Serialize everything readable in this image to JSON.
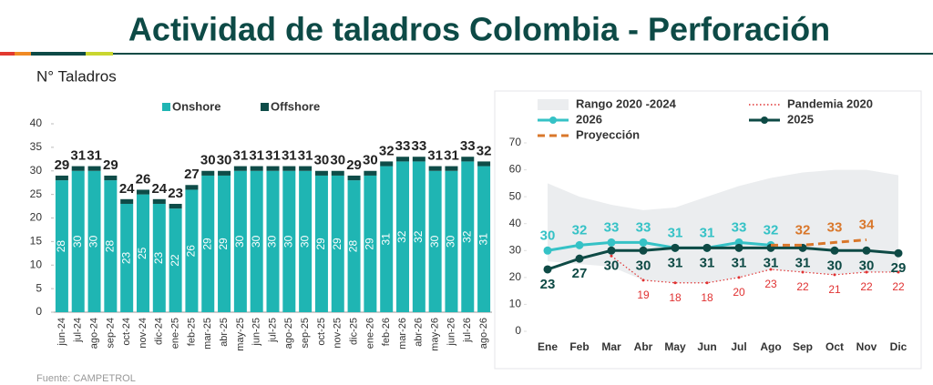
{
  "title": "Actividad de taladros Colombia - Perforación",
  "source": "Fuente: CAMPETROL",
  "chart_data": [
    {
      "type": "stacked_bar",
      "y_label": "N° Taladros",
      "categories": [
        "jun-24",
        "jul-24",
        "ago-24",
        "sep-24",
        "oct-24",
        "nov-24",
        "dic-24",
        "ene-25",
        "feb-25",
        "mar-25",
        "abr-25",
        "may-25",
        "jun-25",
        "jul-25",
        "ago-25",
        "sep-25",
        "oct-25",
        "nov-25",
        "dic-25",
        "ene-26",
        "feb-26",
        "mar-26",
        "abr-26",
        "may-26",
        "jun-26",
        "jul-26",
        "ago-26"
      ],
      "series": [
        {
          "name": "Onshore",
          "color": "#1fb5b3",
          "values": [
            28,
            30,
            30,
            28,
            23,
            25,
            23,
            22,
            26,
            29,
            29,
            30,
            30,
            30,
            30,
            30,
            29,
            29,
            28,
            29,
            31,
            32,
            32,
            30,
            30,
            32,
            31
          ]
        },
        {
          "name": "Offshore",
          "color": "#0e4c48",
          "values": [
            1,
            1,
            1,
            1,
            1,
            1,
            1,
            1,
            1,
            1,
            1,
            1,
            1,
            1,
            1,
            1,
            1,
            1,
            1,
            1,
            1,
            1,
            1,
            1,
            1,
            1,
            1
          ]
        }
      ],
      "total_labels": [
        29,
        31,
        31,
        29,
        24,
        26,
        24,
        23,
        27,
        30,
        30,
        31,
        31,
        31,
        31,
        31,
        30,
        30,
        29,
        30,
        32,
        33,
        33,
        31,
        31,
        33,
        32
      ],
      "ylim": [
        0,
        40
      ],
      "yticks": [
        0,
        5,
        10,
        15,
        20,
        25,
        30,
        35,
        40
      ]
    },
    {
      "type": "line",
      "categories": [
        "Ene",
        "Feb",
        "Mar",
        "Abr",
        "May",
        "Jun",
        "Jul",
        "Ago",
        "Sep",
        "Oct",
        "Nov",
        "Dic"
      ],
      "ylim": [
        0,
        70
      ],
      "yticks": [
        0,
        10,
        20,
        30,
        40,
        50,
        60,
        70
      ],
      "series": [
        {
          "name": "Rango 2020 -2024",
          "color": "#ebedef",
          "lower": [
            26,
            25,
            24,
            19,
            18,
            18,
            20,
            23,
            22,
            21,
            22,
            22
          ],
          "upper": [
            55,
            50,
            47,
            45,
            46,
            50,
            54,
            57,
            59,
            60,
            60,
            58
          ]
        },
        {
          "name": "Pandemia 2020",
          "color": "#e03131",
          "line_style": "dotted",
          "marker": "dot",
          "label_position": "below",
          "values": [
            null,
            null,
            28,
            19,
            18,
            18,
            20,
            23,
            22,
            21,
            22,
            22
          ],
          "value_labels": [
            null,
            null,
            null,
            "19",
            "18",
            "18",
            "20",
            "23",
            "22",
            "21",
            "22",
            "22"
          ]
        },
        {
          "name": "2026",
          "color": "#35c2c6",
          "line_style": "solid",
          "marker": "circle",
          "label_position": "above",
          "values": [
            30,
            32,
            33,
            33,
            31,
            31,
            33,
            32,
            null,
            null,
            null,
            null
          ]
        },
        {
          "name": "2025",
          "color": "#0e4a45",
          "line_style": "solid",
          "marker": "circle",
          "label_position": "below",
          "values": [
            23,
            27,
            30,
            30,
            31,
            31,
            31,
            31,
            31,
            30,
            30,
            29
          ]
        },
        {
          "name": "Proyección",
          "color": "#d9772b",
          "line_style": "dashed",
          "label_position": "above",
          "values": [
            null,
            null,
            null,
            null,
            null,
            null,
            null,
            32,
            32,
            33,
            34,
            null
          ],
          "value_labels": [
            null,
            null,
            null,
            null,
            null,
            null,
            null,
            null,
            "32",
            "33",
            "34",
            null
          ]
        }
      ]
    }
  ]
}
